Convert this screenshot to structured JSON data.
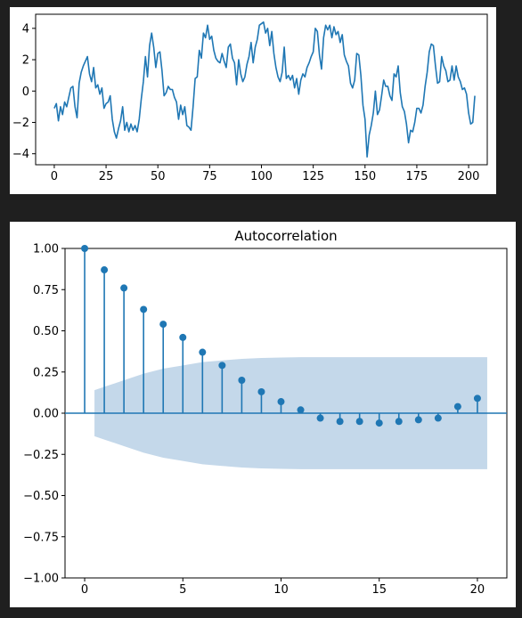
{
  "colors": {
    "line": "#1f77b4",
    "band": "#c4d8ea",
    "background": "#1f1f1f",
    "axes_face": "#ffffff"
  },
  "chart_data": [
    {
      "type": "line",
      "title": "",
      "xlabel": "",
      "ylabel": "",
      "xlim": [
        -9,
        209
      ],
      "ylim": [
        -4.7,
        4.9
      ],
      "xticks": [
        0,
        25,
        50,
        75,
        100,
        125,
        150,
        175,
        200
      ],
      "yticks": [
        -4,
        -2,
        0,
        2,
        4
      ],
      "grid": false,
      "series": [
        {
          "values": [
            -1.1,
            -0.8,
            -1.9,
            -1.0,
            -1.5,
            -0.7,
            -1.0,
            -0.4,
            0.2,
            0.3,
            -1.0,
            -1.7,
            0.5,
            1.2,
            1.6,
            1.9,
            2.2,
            1.1,
            0.6,
            1.5,
            0.2,
            0.4,
            -0.2,
            0.2,
            -1.1,
            -0.8,
            -0.7,
            -0.3,
            -1.8,
            -2.6,
            -3.0,
            -2.4,
            -1.9,
            -1.0,
            -2.5,
            -2.0,
            -2.6,
            -2.1,
            -2.5,
            -2.2,
            -2.6,
            -1.8,
            -0.5,
            0.6,
            2.2,
            0.9,
            2.9,
            3.7,
            2.8,
            1.5,
            2.4,
            2.5,
            1.3,
            -0.3,
            -0.1,
            0.3,
            0.1,
            0.1,
            -0.4,
            -0.7,
            -1.8,
            -0.9,
            -1.5,
            -1.0,
            -2.2,
            -2.3,
            -2.5,
            -1.0,
            0.8,
            0.9,
            2.6,
            2.1,
            3.7,
            3.4,
            4.2,
            3.3,
            3.5,
            2.6,
            2.1,
            1.9,
            1.8,
            2.4,
            1.9,
            1.5,
            2.8,
            3.0,
            2.1,
            1.8,
            0.4,
            2.0,
            1.1,
            0.6,
            0.9,
            1.7,
            2.2,
            3.1,
            1.8,
            2.8,
            3.3,
            4.2,
            4.3,
            4.4,
            3.7,
            4.0,
            2.9,
            3.8,
            2.4,
            1.5,
            0.9,
            0.6,
            1.2,
            2.8,
            0.8,
            1.0,
            0.7,
            1.0,
            0.2,
            0.8,
            -0.2,
            0.7,
            1.1,
            0.9,
            1.5,
            1.8,
            2.2,
            2.5,
            4.0,
            3.8,
            2.3,
            1.4,
            3.4,
            4.2,
            3.9,
            4.2,
            3.4,
            4.1,
            3.6,
            3.8,
            3.1,
            3.6,
            2.3,
            1.9,
            1.6,
            0.5,
            0.2,
            0.7,
            2.4,
            2.3,
            1.0,
            -0.9,
            -1.8,
            -4.2,
            -2.8,
            -2.2,
            -1.4,
            0.0,
            -1.5,
            -1.2,
            -0.3,
            0.7,
            0.3,
            0.3,
            -0.3,
            -0.6,
            1.1,
            0.9,
            1.6,
            -0.1,
            -1.0,
            -1.3,
            -2.1,
            -3.3,
            -2.5,
            -2.6,
            -2.0,
            -1.1,
            -1.1,
            -1.4,
            -0.9,
            0.3,
            1.2,
            2.5,
            3.0,
            2.9,
            1.6,
            0.5,
            0.6,
            2.2,
            1.6,
            1.3,
            0.6,
            0.7,
            1.6,
            0.7,
            1.6,
            0.9,
            0.6,
            0.1,
            0.2,
            -0.2,
            -1.4,
            -2.1,
            -2.0,
            -0.3
          ]
        }
      ]
    },
    {
      "type": "stem",
      "title": "Autocorrelation",
      "xlabel": "",
      "ylabel": "",
      "xlim": [
        -1.0,
        21.5
      ],
      "ylim": [
        -1.0,
        1.0
      ],
      "xticks": [
        0,
        5,
        10,
        15,
        20
      ],
      "yticks": [
        -1.0,
        -0.75,
        -0.5,
        -0.25,
        0.0,
        0.25,
        0.5,
        0.75,
        1.0
      ],
      "ytick_labels": [
        "−1.00",
        "−0.75",
        "−0.50",
        "−0.25",
        "0.00",
        "0.25",
        "0.50",
        "0.75",
        "1.00"
      ],
      "grid": false,
      "lags": [
        0,
        1,
        2,
        3,
        4,
        5,
        6,
        7,
        8,
        9,
        10,
        11,
        12,
        13,
        14,
        15,
        16,
        17,
        18,
        19,
        20
      ],
      "values": [
        1.0,
        0.87,
        0.76,
        0.63,
        0.54,
        0.46,
        0.37,
        0.29,
        0.2,
        0.13,
        0.07,
        0.02,
        -0.03,
        -0.05,
        -0.05,
        -0.06,
        -0.05,
        -0.04,
        -0.03,
        0.04,
        0.09
      ],
      "confidence_band": {
        "lags": [
          0.5,
          1,
          2,
          3,
          4,
          5,
          6,
          7,
          8,
          9,
          10,
          11,
          12,
          13,
          14,
          15,
          16,
          17,
          18,
          19,
          20,
          20.5
        ],
        "upper": [
          0.14,
          0.16,
          0.2,
          0.24,
          0.27,
          0.29,
          0.31,
          0.32,
          0.33,
          0.335,
          0.338,
          0.34,
          0.34,
          0.34,
          0.34,
          0.34,
          0.34,
          0.34,
          0.34,
          0.34,
          0.34,
          0.34
        ],
        "lower": [
          -0.14,
          -0.16,
          -0.2,
          -0.24,
          -0.27,
          -0.29,
          -0.31,
          -0.32,
          -0.33,
          -0.335,
          -0.338,
          -0.34,
          -0.34,
          -0.34,
          -0.34,
          -0.34,
          -0.34,
          -0.34,
          -0.34,
          -0.34,
          -0.34,
          -0.34
        ]
      }
    }
  ]
}
